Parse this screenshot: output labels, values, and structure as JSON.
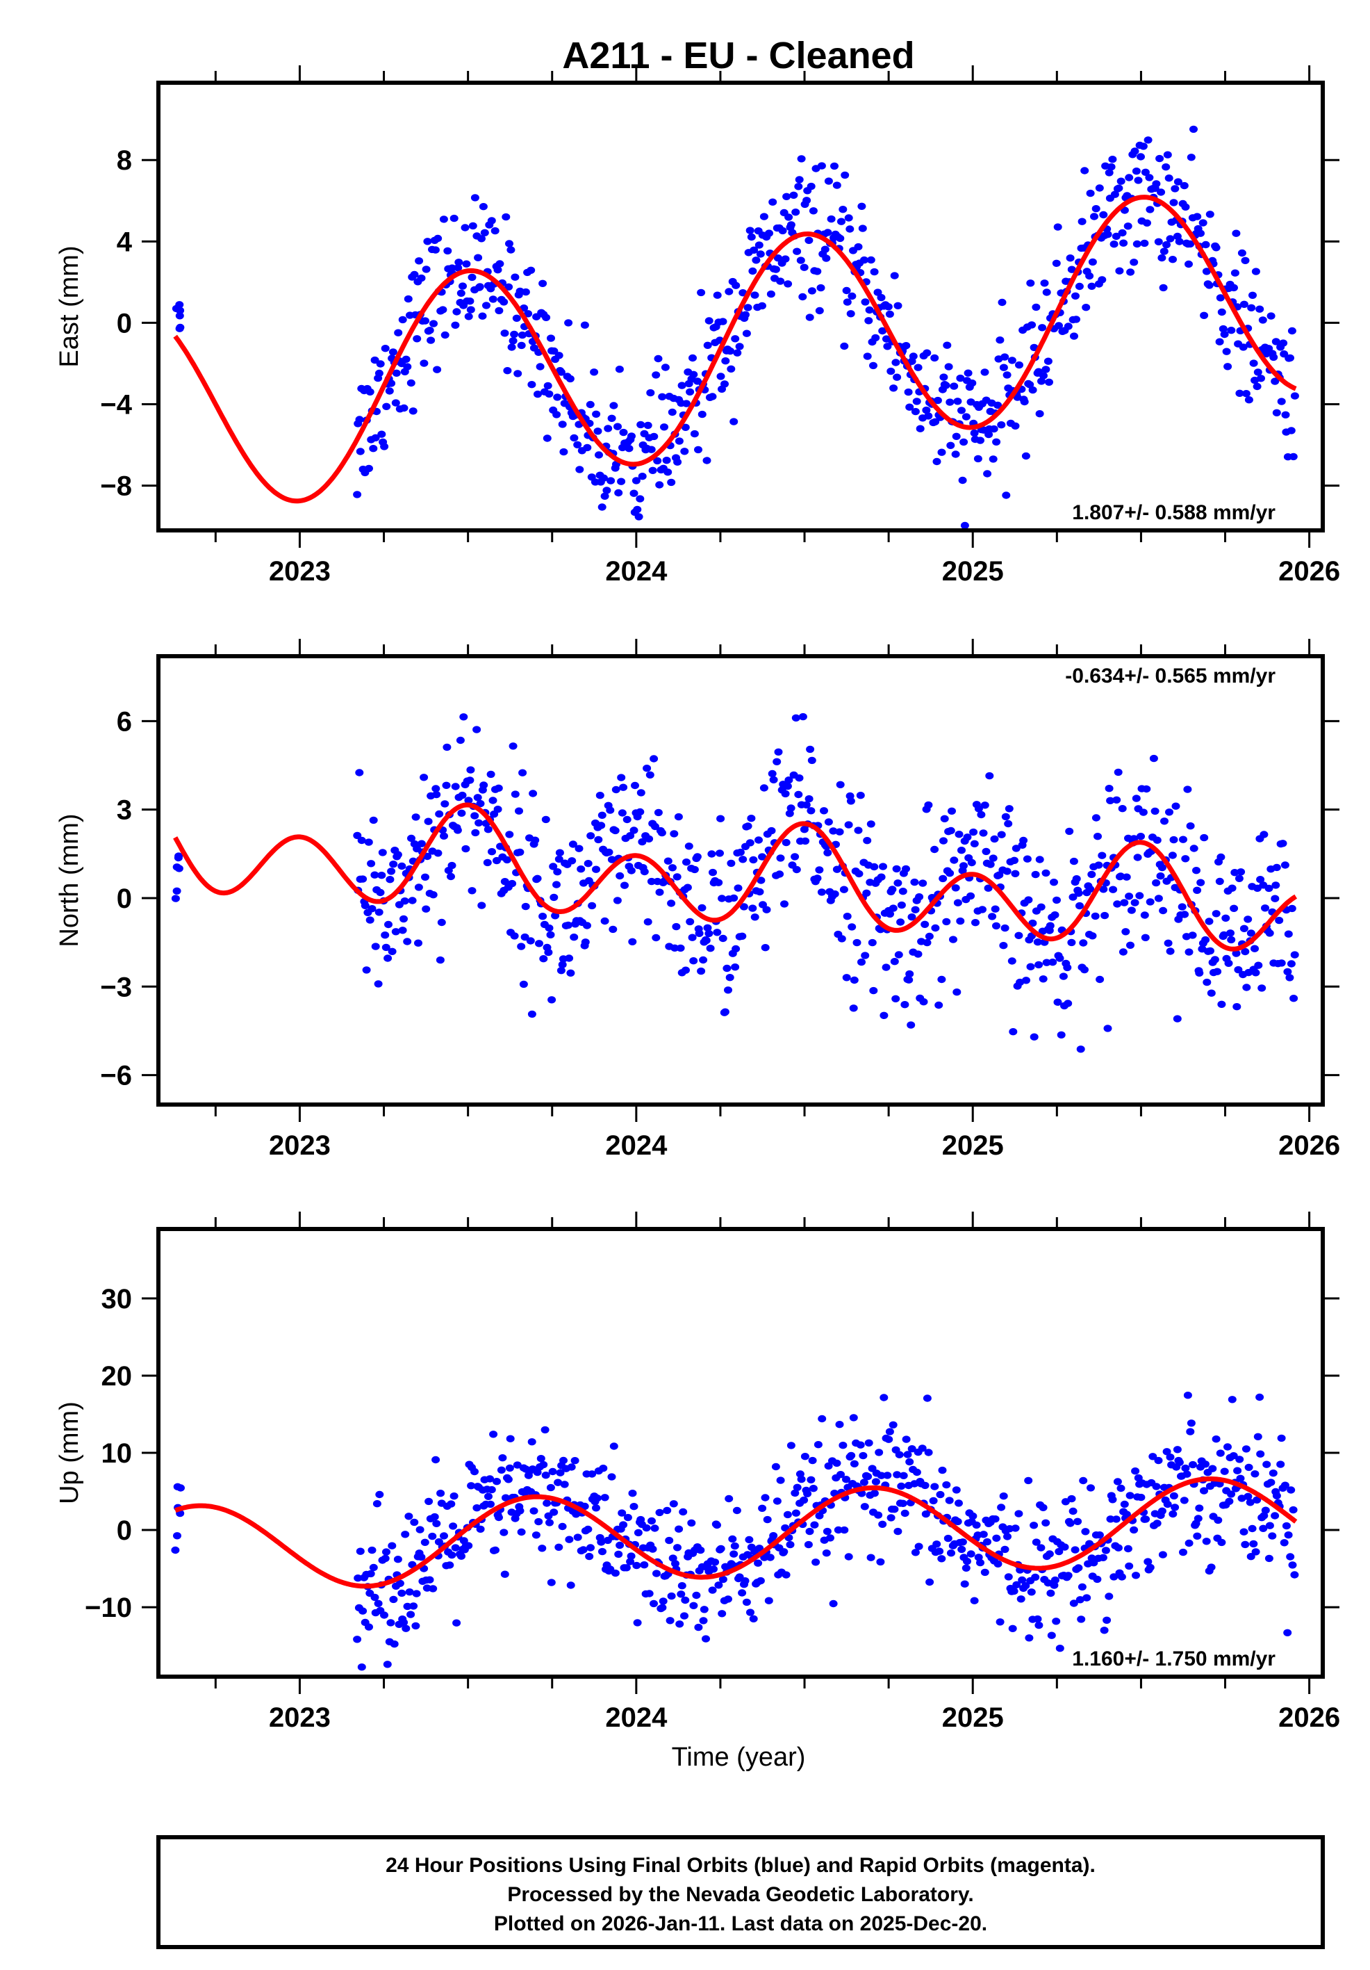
{
  "chart_data": {
    "type": "scatter",
    "title": "A211  - EU - Cleaned",
    "xlabel": "Time (year)",
    "xlim": [
      2022.58,
      2026.04
    ],
    "x_ticks": [
      2023,
      2024,
      2025,
      2026
    ],
    "x_tick_labels": [
      "2023",
      "2024",
      "2025",
      "2026"
    ],
    "marker_color": "#0000ff",
    "fit_color": "#ff0000",
    "panels": [
      {
        "id": "east",
        "ylabel": "East (mm)",
        "ylim": [
          -10.2,
          11.8
        ],
        "y_ticks": [
          -8,
          -4,
          0,
          4,
          8
        ],
        "y_tick_labels": [
          "−8",
          "−4",
          "0",
          "4",
          "8"
        ],
        "rate_label": "1.807+/- 0.588 mm/yr",
        "rate_position": "bottom-right",
        "fit": {
          "rate": 1.807,
          "offset": -1.2,
          "annual_amp": 5.2,
          "annual_phase_peak": 0.5,
          "semi_amp": 0.0,
          "semi_phase_peak": 0.0
        },
        "cluster_start": [
          2022.63,
          2022.65,
          -0.8,
          0.9
        ],
        "data_range": [
          2023.17,
          2025.96
        ],
        "noise_sd": 1.7,
        "n_points": 800
      },
      {
        "id": "north",
        "ylabel": "North (mm)",
        "ylim": [
          -7.0,
          8.2
        ],
        "y_ticks": [
          -6,
          -3,
          0,
          3,
          6
        ],
        "y_tick_labels": [
          "−6",
          "−3",
          "0",
          "3",
          "6"
        ],
        "rate_label": "-0.634+/- 0.565 mm/yr",
        "rate_position": "top-right",
        "fit": {
          "rate": -0.634,
          "offset": 0.6,
          "annual_amp": 0.7,
          "annual_phase_peak": 0.5,
          "semi_amp": 1.35,
          "semi_phase_peak": 0.0
        },
        "cluster_start": [
          2022.63,
          2022.65,
          -1.0,
          1.5
        ],
        "data_range": [
          2023.17,
          2025.96
        ],
        "noise_sd": 1.6,
        "n_points": 800
      },
      {
        "id": "up",
        "ylabel": "Up (mm)",
        "ylim": [
          -19.0,
          39.0
        ],
        "y_ticks": [
          -10,
          0,
          10,
          20,
          30
        ],
        "y_tick_labels": [
          "−10",
          "0",
          "10",
          "20",
          "30"
        ],
        "rate_label": "1.160+/- 1.750 mm/yr",
        "rate_position": "bottom-right",
        "fit": {
          "rate": 1.16,
          "offset": -0.5,
          "annual_amp": 5.5,
          "annual_phase_peak": 0.7,
          "semi_amp": 0.0,
          "semi_phase_peak": 0.0
        },
        "cluster_start": [
          2022.63,
          2022.65,
          -3.0,
          6.0
        ],
        "data_range": [
          2023.17,
          2025.96
        ],
        "noise_sd": 4.5,
        "n_points": 800
      }
    ]
  },
  "footer": {
    "lines": [
      "24 Hour Positions Using Final Orbits (blue) and Rapid Orbits (magenta).",
      "Processed by the Nevada Geodetic Laboratory.",
      "Plotted on 2026-Jan-11. Last data on 2025-Dec-20."
    ]
  }
}
